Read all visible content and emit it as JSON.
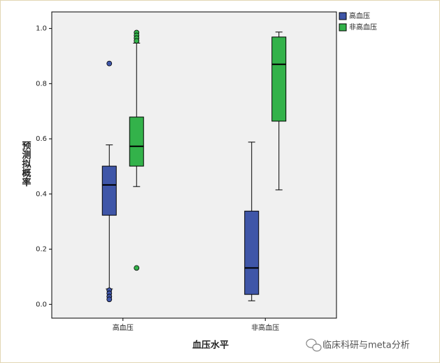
{
  "chart_data": {
    "type": "box",
    "x_label": "血压水平",
    "y_label": "预测拟概率",
    "categories": [
      "高血压",
      "非高血压"
    ],
    "ylim": [
      -0.05,
      1.06
    ],
    "yticks": [
      {
        "value": 0.0,
        "label": "0.0"
      },
      {
        "value": 0.2,
        "label": "0.2"
      },
      {
        "value": 0.4,
        "label": "0.4"
      },
      {
        "value": 0.6,
        "label": "0.6"
      },
      {
        "value": 0.8,
        "label": "0.8"
      },
      {
        "value": 1.0,
        "label": "1.0"
      }
    ],
    "series": [
      {
        "name": "高血压",
        "color": "#3f56a8",
        "values": [
          {
            "min": 0.056,
            "q1": 0.323,
            "median": 0.433,
            "q3": 0.501,
            "max": 0.578,
            "outliers": [
              0.873,
              0.051,
              0.04,
              0.028,
              0.018
            ]
          },
          {
            "min": 0.013,
            "q1": 0.036,
            "median": 0.132,
            "q3": 0.338,
            "max": 0.588,
            "outliers": []
          }
        ]
      },
      {
        "name": "非高血压",
        "color": "#33b24a",
        "values": [
          {
            "min": 0.427,
            "q1": 0.501,
            "median": 0.573,
            "q3": 0.679,
            "max": 0.947,
            "outliers": [
              0.985,
              0.975,
              0.965,
              0.955,
              0.132
            ]
          },
          {
            "min": 0.415,
            "q1": 0.664,
            "median": 0.87,
            "q3": 0.969,
            "max": 0.987,
            "outliers": []
          }
        ]
      }
    ]
  },
  "watermark": "临床科研与meta分析"
}
